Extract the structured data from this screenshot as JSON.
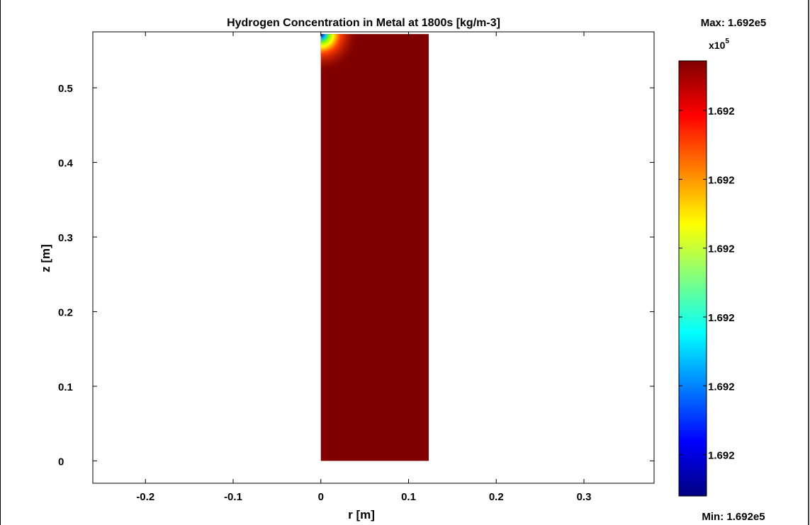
{
  "chart_data": {
    "type": "heatmap",
    "title": "Hydrogen Concentration in Metal at 1800s [kg/m-3]",
    "xlabel": "r [m]",
    "ylabel": "z [m]",
    "xlim": [
      -0.26,
      0.38
    ],
    "ylim": [
      -0.03,
      0.575
    ],
    "x_ticks": [
      -0.2,
      -0.1,
      0,
      0.1,
      0.2,
      0.3
    ],
    "x_tick_labels": [
      "-0.2",
      "-0.1",
      "0",
      "0.1",
      "0.2",
      "0.3"
    ],
    "y_ticks": [
      0,
      0.1,
      0.2,
      0.3,
      0.4,
      0.5
    ],
    "y_tick_labels": [
      "0",
      "0.1",
      "0.2",
      "0.3",
      "0.4",
      "0.5"
    ],
    "domain": {
      "r": [
        0,
        0.123
      ],
      "z": [
        0,
        0.572
      ]
    },
    "field_color": "#800000",
    "corner_gradient": {
      "at": {
        "r": 0,
        "z": 0.572
      },
      "colors": [
        "#000080",
        "#00bfff",
        "#7fff00",
        "#ffff00",
        "#ff4000",
        "#800000"
      ]
    },
    "grid": false,
    "colorbar": {
      "max_label": "Max: 1.692e5",
      "min_label": "Min: 1.692e5",
      "multiplier_base": "x10",
      "multiplier_exp": "5",
      "tick_labels": [
        "1.692",
        "1.692",
        "1.692",
        "1.692",
        "1.692",
        "1.692"
      ],
      "colormap": [
        "#000080",
        "#0000ff",
        "#0080ff",
        "#00ffff",
        "#80ff80",
        "#ffff00",
        "#ff8000",
        "#ff0000",
        "#800000"
      ]
    }
  }
}
